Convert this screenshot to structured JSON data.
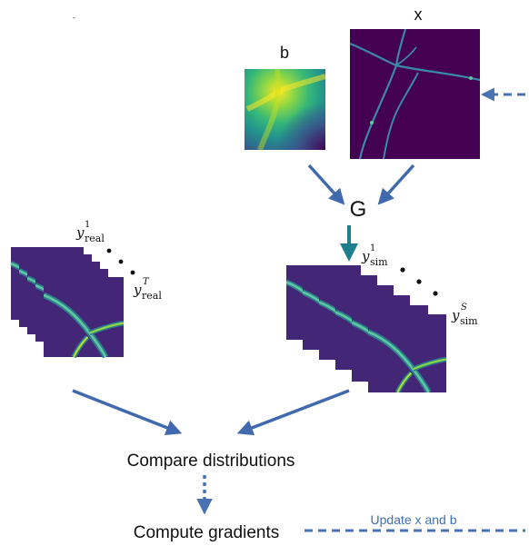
{
  "labels": {
    "b": "b",
    "x": "x",
    "G": "G",
    "compare": "Compare distributions",
    "compute": "Compute gradients",
    "update": "Update x and b"
  },
  "stack_labels": {
    "real_first": {
      "base": "y",
      "sub": "real",
      "sup": "1"
    },
    "real_last": {
      "base": "y",
      "sub": "real",
      "sup": "T"
    },
    "sim_first": {
      "base": "y",
      "sub": "sim",
      "sup": "1"
    },
    "sim_last": {
      "base": "y",
      "sub": "sim",
      "sup": "S"
    }
  },
  "colors": {
    "arrow": "#4169ad",
    "g_arrow": "#1d7f8e",
    "dashed": "#4a72b3",
    "viridis_dark": "#440154",
    "viridis_mid": "#21918c",
    "viridis_light": "#fde725"
  }
}
